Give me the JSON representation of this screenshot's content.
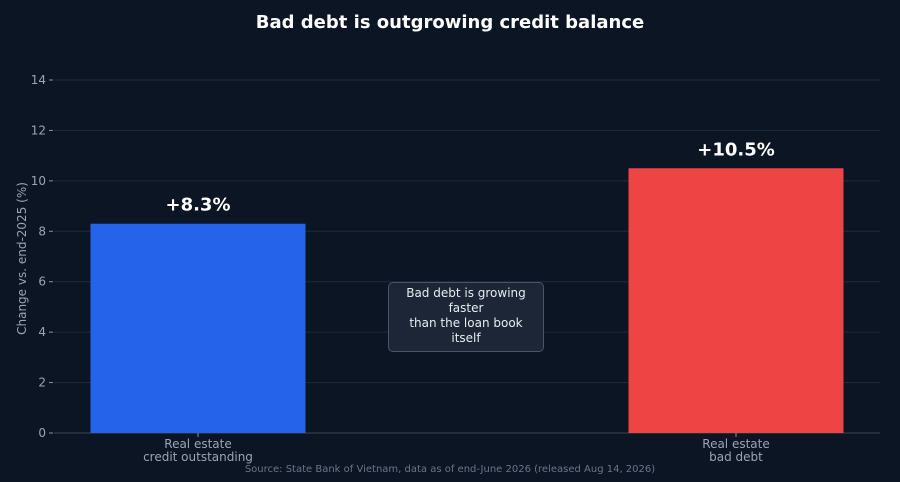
{
  "chart_data": {
    "type": "bar",
    "title": "Bad debt is outgrowing credit balance",
    "ylabel": "Change vs. end-2025 (%)",
    "xlabel": "",
    "ylim": [
      0,
      14
    ],
    "yticks": [
      0,
      2,
      4,
      6,
      8,
      10,
      12,
      14
    ],
    "grid": true,
    "categories": [
      [
        "Real estate",
        "credit outstanding"
      ],
      [
        "Real estate",
        "bad debt"
      ]
    ],
    "values": [
      8.3,
      10.5
    ],
    "value_labels": [
      "+8.3%",
      "+10.5%"
    ],
    "colors": [
      "#2563eb",
      "#ef4444"
    ],
    "annotation": [
      "Bad debt is growing faster",
      "than the loan book itself"
    ],
    "source": "Source: State Bank of Vietnam, data as of end-June 2026 (released Aug 14, 2026)"
  }
}
